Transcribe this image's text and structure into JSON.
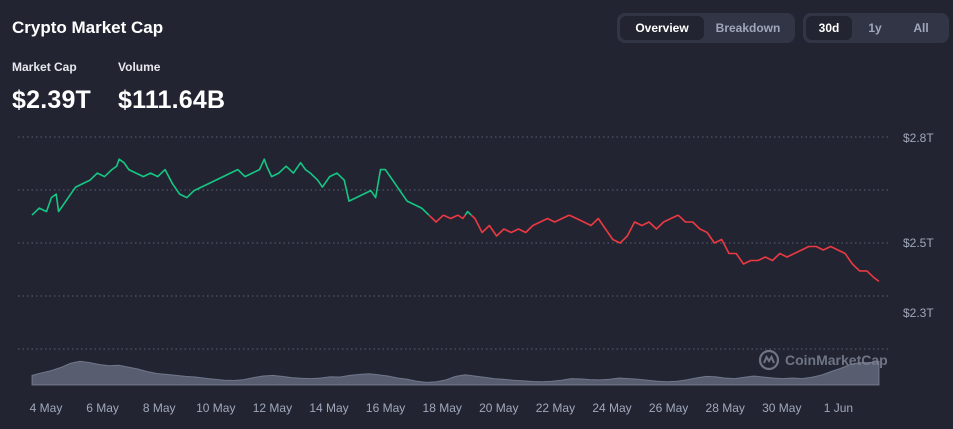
{
  "title": "Crypto Market Cap",
  "stats": {
    "market_cap_label": "Market Cap",
    "market_cap_value": "$2.39T",
    "volume_label": "Volume",
    "volume_value": "$111.64B"
  },
  "view_tabs": [
    {
      "label": "Overview",
      "active": true
    },
    {
      "label": "Breakdown",
      "active": false
    }
  ],
  "range_tabs": [
    {
      "label": "30d",
      "active": true
    },
    {
      "label": "1y",
      "active": false
    },
    {
      "label": "All",
      "active": false
    }
  ],
  "watermark": "CoinMarketCap",
  "colors": {
    "up": "#16c784",
    "down": "#ea3943",
    "grid": "#5b6072",
    "volume": "#858ca2",
    "background": "#222531"
  },
  "chart_data": {
    "type": "line",
    "title": "",
    "xlabel": "",
    "ylabel": "",
    "x_tick_labels": [
      "4 May",
      "6 May",
      "8 May",
      "10 May",
      "12 May",
      "14 May",
      "16 May",
      "18 May",
      "20 May",
      "22 May",
      "24 May",
      "26 May",
      "28 May",
      "30 May",
      "1 Jun"
    ],
    "y_tick_labels": [
      "$2.8T",
      "$2.5T",
      "$2.3T"
    ],
    "y_ticks": [
      2.8,
      2.5,
      2.3
    ],
    "grid": true,
    "baseline_value": 2.58,
    "series": [
      {
        "values": [
          [
            0.0,
            2.58
          ],
          [
            0.3,
            2.6
          ],
          [
            0.6,
            2.59
          ],
          [
            0.8,
            2.63
          ],
          [
            1.0,
            2.64
          ],
          [
            1.1,
            2.59
          ],
          [
            1.3,
            2.61
          ],
          [
            1.5,
            2.63
          ],
          [
            1.8,
            2.66
          ],
          [
            2.1,
            2.67
          ],
          [
            2.4,
            2.68
          ],
          [
            2.7,
            2.7
          ],
          [
            3.0,
            2.69
          ],
          [
            3.3,
            2.71
          ],
          [
            3.5,
            2.72
          ],
          [
            3.6,
            2.74
          ],
          [
            3.8,
            2.73
          ],
          [
            4.0,
            2.71
          ],
          [
            4.3,
            2.7
          ],
          [
            4.6,
            2.69
          ],
          [
            4.9,
            2.7
          ],
          [
            5.2,
            2.69
          ],
          [
            5.5,
            2.71
          ],
          [
            5.8,
            2.67
          ],
          [
            6.1,
            2.64
          ],
          [
            6.4,
            2.63
          ],
          [
            6.7,
            2.65
          ],
          [
            7.0,
            2.66
          ],
          [
            7.3,
            2.67
          ],
          [
            7.6,
            2.68
          ],
          [
            7.9,
            2.69
          ],
          [
            8.2,
            2.7
          ],
          [
            8.5,
            2.71
          ],
          [
            8.8,
            2.69
          ],
          [
            9.1,
            2.7
          ],
          [
            9.4,
            2.71
          ],
          [
            9.6,
            2.74
          ],
          [
            9.7,
            2.72
          ],
          [
            9.9,
            2.69
          ],
          [
            10.2,
            2.7
          ],
          [
            10.5,
            2.72
          ],
          [
            10.8,
            2.7
          ],
          [
            11.1,
            2.73
          ],
          [
            11.3,
            2.71
          ],
          [
            11.5,
            2.7
          ],
          [
            11.8,
            2.68
          ],
          [
            12.0,
            2.66
          ],
          [
            12.3,
            2.69
          ],
          [
            12.6,
            2.7
          ],
          [
            12.9,
            2.68
          ],
          [
            13.1,
            2.62
          ],
          [
            13.4,
            2.63
          ],
          [
            13.7,
            2.64
          ],
          [
            14.0,
            2.65
          ],
          [
            14.2,
            2.63
          ],
          [
            14.4,
            2.71
          ],
          [
            14.6,
            2.71
          ],
          [
            14.9,
            2.68
          ],
          [
            15.2,
            2.65
          ],
          [
            15.5,
            2.62
          ],
          [
            15.8,
            2.61
          ],
          [
            16.1,
            2.6
          ],
          [
            16.4,
            2.58
          ],
          [
            16.7,
            2.56
          ],
          [
            17.0,
            2.58
          ],
          [
            17.3,
            2.57
          ],
          [
            17.6,
            2.58
          ],
          [
            17.8,
            2.57
          ],
          [
            18.0,
            2.59
          ],
          [
            18.3,
            2.57
          ],
          [
            18.6,
            2.53
          ],
          [
            18.9,
            2.55
          ],
          [
            19.2,
            2.52
          ],
          [
            19.5,
            2.54
          ],
          [
            19.8,
            2.53
          ],
          [
            20.1,
            2.54
          ],
          [
            20.4,
            2.53
          ],
          [
            20.7,
            2.55
          ],
          [
            21.0,
            2.56
          ],
          [
            21.3,
            2.57
          ],
          [
            21.6,
            2.56
          ],
          [
            21.9,
            2.57
          ],
          [
            22.2,
            2.58
          ],
          [
            22.5,
            2.57
          ],
          [
            22.8,
            2.56
          ],
          [
            23.1,
            2.55
          ],
          [
            23.4,
            2.57
          ],
          [
            23.7,
            2.54
          ],
          [
            24.0,
            2.51
          ],
          [
            24.3,
            2.5
          ],
          [
            24.6,
            2.52
          ],
          [
            24.9,
            2.56
          ],
          [
            25.2,
            2.55
          ],
          [
            25.5,
            2.56
          ],
          [
            25.8,
            2.54
          ],
          [
            26.1,
            2.56
          ],
          [
            26.4,
            2.57
          ],
          [
            26.7,
            2.58
          ],
          [
            27.0,
            2.56
          ],
          [
            27.3,
            2.56
          ],
          [
            27.6,
            2.54
          ],
          [
            27.9,
            2.53
          ],
          [
            28.2,
            2.5
          ],
          [
            28.5,
            2.51
          ],
          [
            28.8,
            2.47
          ],
          [
            29.1,
            2.47
          ],
          [
            29.4,
            2.44
          ],
          [
            29.7,
            2.45
          ],
          [
            30.0,
            2.45
          ],
          [
            30.3,
            2.46
          ],
          [
            30.6,
            2.45
          ],
          [
            30.9,
            2.47
          ],
          [
            31.2,
            2.46
          ],
          [
            31.5,
            2.47
          ],
          [
            31.8,
            2.48
          ],
          [
            32.1,
            2.49
          ],
          [
            32.4,
            2.49
          ],
          [
            32.7,
            2.48
          ],
          [
            33.0,
            2.49
          ],
          [
            33.3,
            2.48
          ],
          [
            33.6,
            2.47
          ],
          [
            33.9,
            2.44
          ],
          [
            34.2,
            2.42
          ],
          [
            34.5,
            2.42
          ],
          [
            34.8,
            2.4
          ],
          [
            35.0,
            2.39
          ]
        ]
      }
    ],
    "volume": [
      0.3,
      0.38,
      0.45,
      0.55,
      0.68,
      0.74,
      0.7,
      0.64,
      0.6,
      0.62,
      0.56,
      0.5,
      0.42,
      0.36,
      0.33,
      0.3,
      0.27,
      0.25,
      0.21,
      0.18,
      0.15,
      0.14,
      0.17,
      0.23,
      0.28,
      0.3,
      0.27,
      0.23,
      0.21,
      0.2,
      0.22,
      0.26,
      0.25,
      0.3,
      0.33,
      0.35,
      0.32,
      0.28,
      0.22,
      0.18,
      0.12,
      0.08,
      0.1,
      0.16,
      0.27,
      0.32,
      0.28,
      0.24,
      0.2,
      0.18,
      0.15,
      0.13,
      0.11,
      0.1,
      0.12,
      0.15,
      0.2,
      0.19,
      0.17,
      0.16,
      0.18,
      0.22,
      0.2,
      0.18,
      0.15,
      0.12,
      0.1,
      0.12,
      0.16,
      0.22,
      0.27,
      0.26,
      0.22,
      0.2,
      0.24,
      0.28,
      0.25,
      0.22,
      0.2,
      0.22,
      0.2,
      0.24,
      0.31,
      0.42,
      0.52,
      0.64,
      0.7,
      0.7,
      0.74
    ]
  }
}
